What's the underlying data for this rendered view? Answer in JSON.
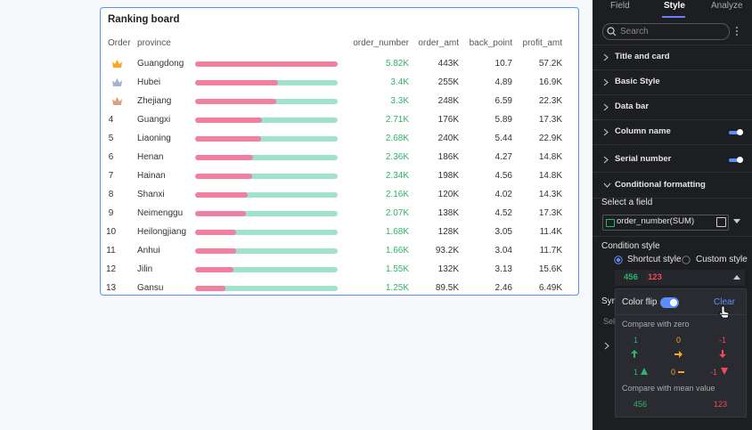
{
  "board": {
    "title": "Ranking board",
    "headers": [
      "Order",
      "province",
      "order_number",
      "order_amt",
      "back_point",
      "profit_amt"
    ],
    "rows": [
      {
        "province": "Guangdong",
        "order_number": {
          "value": 5820,
          "label": "5.82K"
        },
        "order_amt": "443K",
        "back_point": "10.7",
        "profit_amt": "57.2K"
      },
      {
        "province": "Hubei",
        "order_number": {
          "value": 3400,
          "label": "3.4K"
        },
        "order_amt": "255K",
        "back_point": "4.89",
        "profit_amt": "16.9K"
      },
      {
        "province": "Zhejiang",
        "order_number": {
          "value": 3300,
          "label": "3.3K"
        },
        "order_amt": "248K",
        "back_point": "6.59",
        "profit_amt": "22.3K"
      },
      {
        "order": "4",
        "province": "Guangxi",
        "order_number": {
          "value": 2710,
          "label": "2.71K"
        },
        "order_amt": "176K",
        "back_point": "5.89",
        "profit_amt": "17.3K"
      },
      {
        "order": "5",
        "province": "Liaoning",
        "order_number": {
          "value": 2680,
          "label": "2.68K"
        },
        "order_amt": "240K",
        "back_point": "5.44",
        "profit_amt": "22.9K"
      },
      {
        "order": "6",
        "province": "Henan",
        "order_number": {
          "value": 2360,
          "label": "2.36K"
        },
        "order_amt": "186K",
        "back_point": "4.27",
        "profit_amt": "14.8K"
      },
      {
        "order": "7",
        "province": "Hainan",
        "order_number": {
          "value": 2340,
          "label": "2.34K"
        },
        "order_amt": "198K",
        "back_point": "4.56",
        "profit_amt": "14.8K"
      },
      {
        "order": "8",
        "province": "Shanxi",
        "order_number": {
          "value": 2160,
          "label": "2.16K"
        },
        "order_amt": "120K",
        "back_point": "4.02",
        "profit_amt": "14.3K"
      },
      {
        "order": "9",
        "province": "Neimenggu",
        "order_number": {
          "value": 2070,
          "label": "2.07K"
        },
        "order_amt": "138K",
        "back_point": "4.52",
        "profit_amt": "17.3K"
      },
      {
        "order": "10",
        "province": "Heilongjiang",
        "order_number": {
          "value": 1680,
          "label": "1.68K"
        },
        "order_amt": "128K",
        "back_point": "3.05",
        "profit_amt": "11.4K"
      },
      {
        "order": "11",
        "province": "Anhui",
        "order_number": {
          "value": 1660,
          "label": "1.66K"
        },
        "order_amt": "93.2K",
        "back_point": "3.04",
        "profit_amt": "11.7K"
      },
      {
        "order": "12",
        "province": "Jilin",
        "order_number": {
          "value": 1550,
          "label": "1.55K"
        },
        "order_amt": "132K",
        "back_point": "3.13",
        "profit_amt": "15.6K"
      },
      {
        "order": "13",
        "province": "Gansu",
        "order_number": {
          "value": 1250,
          "label": "1.25K"
        },
        "order_amt": "89.5K",
        "back_point": "2.46",
        "profit_amt": "6.49K"
      }
    ]
  },
  "panel": {
    "tabs": [
      "Field",
      "Style",
      "Analyze"
    ],
    "search": "Search",
    "sections": [
      "Title and card",
      "Basic Style",
      "Data bar",
      "Column name",
      "Serial number",
      "Conditional formatting"
    ],
    "select_field": "Select a field",
    "field": "order_number(SUM)",
    "condition_style": "Condition style",
    "options": [
      "Shortcut style",
      "Custom style"
    ],
    "preview": [
      "456",
      "123"
    ],
    "hidden": [
      "Syn",
      "Sel"
    ],
    "popup": {
      "color_flip": "Color flip",
      "clear": "Clear",
      "compare_zero": "Compare with zero",
      "zero_values": [
        "1",
        "0",
        "-1"
      ],
      "zero_icon_values": [
        "1",
        "0",
        "-1"
      ],
      "compare_mean": "Compare with mean value",
      "mean_values": [
        "456",
        "123"
      ]
    }
  }
}
